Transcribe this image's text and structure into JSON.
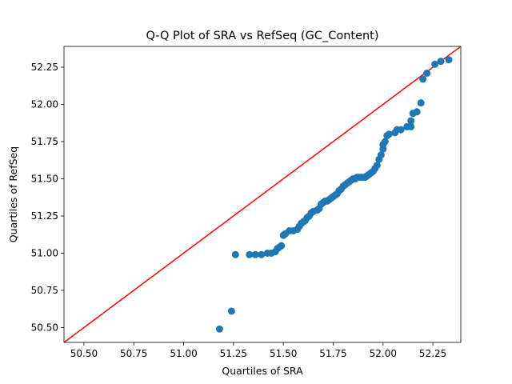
{
  "chart_data": {
    "type": "scatter",
    "title": "Q-Q Plot of SRA vs RefSeq (GC_Content)",
    "xlabel": "Quartiles of SRA",
    "ylabel": "Quartiles of RefSeq",
    "xlim": [
      50.4,
      52.39
    ],
    "ylim": [
      50.4,
      52.39
    ],
    "xticks": [
      "50.50",
      "50.75",
      "51.00",
      "51.25",
      "51.50",
      "51.75",
      "52.00",
      "52.25"
    ],
    "yticks": [
      "50.50",
      "50.75",
      "51.00",
      "51.25",
      "51.50",
      "51.75",
      "52.00",
      "52.25"
    ],
    "grid": false,
    "legend": "none",
    "point_color": "#1f77b4",
    "reference_line": {
      "x": [
        50.4,
        52.39
      ],
      "y": [
        50.4,
        52.39
      ],
      "color": "#ff0000"
    },
    "points": [
      {
        "x": 51.18,
        "y": 50.49
      },
      {
        "x": 51.24,
        "y": 50.61
      },
      {
        "x": 51.26,
        "y": 50.99
      },
      {
        "x": 51.33,
        "y": 50.99
      },
      {
        "x": 51.36,
        "y": 50.99
      },
      {
        "x": 51.39,
        "y": 50.99
      },
      {
        "x": 51.42,
        "y": 51.0
      },
      {
        "x": 51.44,
        "y": 51.0
      },
      {
        "x": 51.46,
        "y": 51.01
      },
      {
        "x": 51.47,
        "y": 51.03
      },
      {
        "x": 51.48,
        "y": 51.04
      },
      {
        "x": 51.49,
        "y": 51.05
      },
      {
        "x": 51.5,
        "y": 51.12
      },
      {
        "x": 51.51,
        "y": 51.13
      },
      {
        "x": 51.53,
        "y": 51.15
      },
      {
        "x": 51.55,
        "y": 51.15
      },
      {
        "x": 51.57,
        "y": 51.16
      },
      {
        "x": 51.58,
        "y": 51.18
      },
      {
        "x": 51.59,
        "y": 51.2
      },
      {
        "x": 51.6,
        "y": 51.21
      },
      {
        "x": 51.61,
        "y": 51.22
      },
      {
        "x": 51.62,
        "y": 51.24
      },
      {
        "x": 51.63,
        "y": 51.25
      },
      {
        "x": 51.64,
        "y": 51.27
      },
      {
        "x": 51.65,
        "y": 51.28
      },
      {
        "x": 51.67,
        "y": 51.29
      },
      {
        "x": 51.68,
        "y": 51.3
      },
      {
        "x": 51.69,
        "y": 51.33
      },
      {
        "x": 51.7,
        "y": 51.34
      },
      {
        "x": 51.71,
        "y": 51.35
      },
      {
        "x": 51.72,
        "y": 51.35
      },
      {
        "x": 51.73,
        "y": 51.36
      },
      {
        "x": 51.74,
        "y": 51.37
      },
      {
        "x": 51.75,
        "y": 51.38
      },
      {
        "x": 51.76,
        "y": 51.39
      },
      {
        "x": 51.77,
        "y": 51.4
      },
      {
        "x": 51.78,
        "y": 51.42
      },
      {
        "x": 51.79,
        "y": 51.43
      },
      {
        "x": 51.8,
        "y": 51.45
      },
      {
        "x": 51.81,
        "y": 51.46
      },
      {
        "x": 51.82,
        "y": 51.47
      },
      {
        "x": 51.83,
        "y": 51.48
      },
      {
        "x": 51.84,
        "y": 51.49
      },
      {
        "x": 51.85,
        "y": 51.5
      },
      {
        "x": 51.86,
        "y": 51.5
      },
      {
        "x": 51.87,
        "y": 51.51
      },
      {
        "x": 51.88,
        "y": 51.51
      },
      {
        "x": 51.89,
        "y": 51.51
      },
      {
        "x": 51.9,
        "y": 51.51
      },
      {
        "x": 51.91,
        "y": 51.51
      },
      {
        "x": 51.92,
        "y": 51.52
      },
      {
        "x": 51.93,
        "y": 51.53
      },
      {
        "x": 51.94,
        "y": 51.54
      },
      {
        "x": 51.95,
        "y": 51.55
      },
      {
        "x": 51.96,
        "y": 51.57
      },
      {
        "x": 51.97,
        "y": 51.59
      },
      {
        "x": 51.98,
        "y": 51.63
      },
      {
        "x": 51.99,
        "y": 51.66
      },
      {
        "x": 52.0,
        "y": 51.7
      },
      {
        "x": 52.0,
        "y": 51.73
      },
      {
        "x": 52.01,
        "y": 51.75
      },
      {
        "x": 52.02,
        "y": 51.79
      },
      {
        "x": 52.03,
        "y": 51.8
      },
      {
        "x": 52.06,
        "y": 51.81
      },
      {
        "x": 52.07,
        "y": 51.83
      },
      {
        "x": 52.09,
        "y": 51.83
      },
      {
        "x": 52.12,
        "y": 51.85
      },
      {
        "x": 52.14,
        "y": 51.85
      },
      {
        "x": 52.14,
        "y": 51.89
      },
      {
        "x": 52.15,
        "y": 51.94
      },
      {
        "x": 52.17,
        "y": 51.95
      },
      {
        "x": 52.19,
        "y": 52.01
      },
      {
        "x": 52.2,
        "y": 52.17
      },
      {
        "x": 52.22,
        "y": 52.21
      },
      {
        "x": 52.26,
        "y": 52.27
      },
      {
        "x": 52.29,
        "y": 52.29
      },
      {
        "x": 52.33,
        "y": 52.3
      }
    ]
  }
}
